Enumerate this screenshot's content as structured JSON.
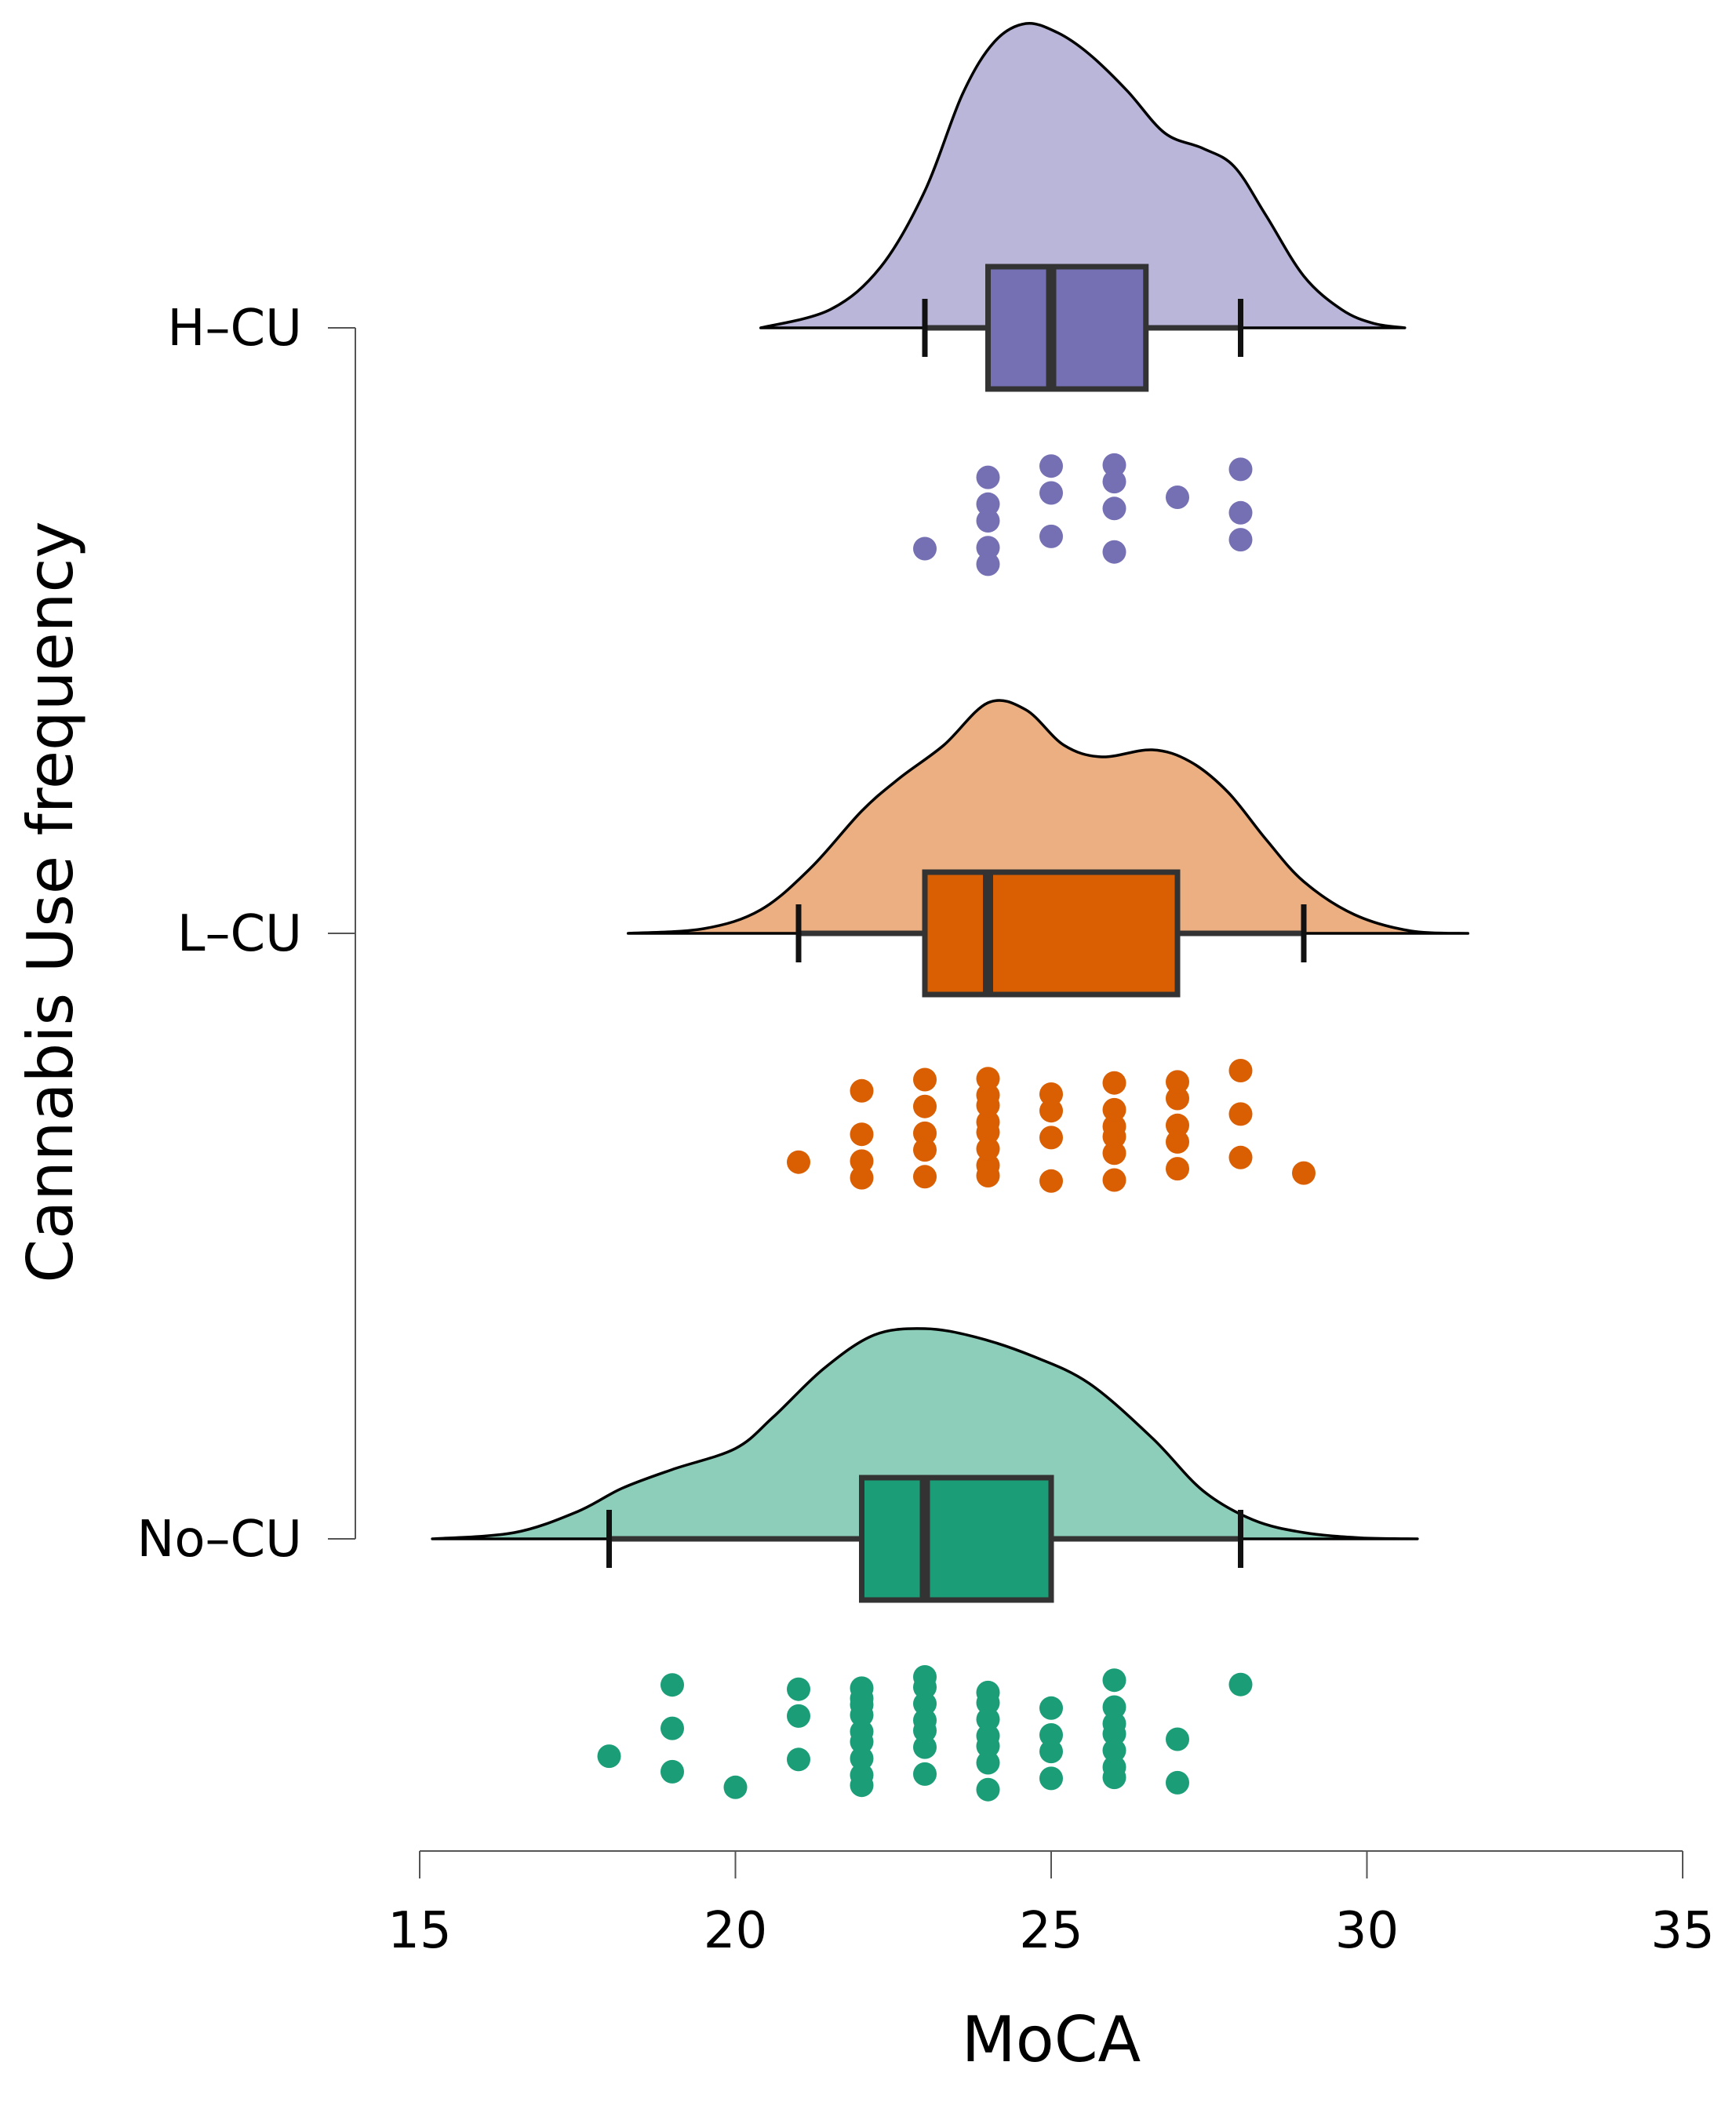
{
  "chart_data": {
    "type": "raincloud",
    "title": "",
    "xlabel": "MoCA",
    "ylabel": "Cannabis Use frequency",
    "xlim": [
      15,
      35
    ],
    "x_ticks": [
      "15",
      "20",
      "25",
      "30",
      "35"
    ],
    "x_tick_values": [
      15,
      20,
      25,
      30,
      35
    ],
    "categories": [
      "H–CU",
      "L–CU",
      "No–CU"
    ],
    "groups": [
      {
        "name": "H–CU",
        "fill": "#7570b3",
        "cloud_fill": "#bab6d9",
        "box": {
          "whisker_low": 23,
          "q1": 24,
          "median": 25,
          "q3": 26.5,
          "whisker_high": 28
        },
        "density": {
          "x": [
            20.4,
            21.5,
            22.3,
            23.0,
            23.6,
            24.1,
            24.6,
            25.1,
            25.6,
            26.2,
            26.8,
            27.4,
            27.9,
            28.4,
            29.0,
            29.6,
            30.1,
            30.6
          ],
          "y": [
            0.0,
            0.06,
            0.2,
            0.45,
            0.77,
            0.94,
            1.0,
            0.97,
            0.9,
            0.78,
            0.64,
            0.59,
            0.53,
            0.37,
            0.17,
            0.06,
            0.015,
            0.0
          ]
        },
        "points": [
          23,
          24,
          24,
          24,
          24,
          24,
          25,
          25,
          25,
          26,
          26,
          26,
          26,
          27,
          28,
          28,
          28
        ]
      },
      {
        "name": "L–CU",
        "fill": "#d95f02",
        "cloud_fill": "#ebaf81",
        "box": {
          "whisker_low": 21,
          "q1": 23,
          "median": 24,
          "q3": 27,
          "whisker_high": 29
        },
        "density": {
          "x": [
            18.3,
            19.5,
            20.4,
            21.2,
            22.0,
            22.6,
            23.3,
            24.0,
            24.6,
            25.2,
            25.8,
            26.6,
            27.2,
            27.8,
            28.4,
            29.0,
            29.8,
            30.7,
            31.6
          ],
          "y": [
            0.0,
            0.02,
            0.1,
            0.28,
            0.52,
            0.66,
            0.8,
            0.98,
            0.95,
            0.8,
            0.75,
            0.78,
            0.73,
            0.6,
            0.4,
            0.22,
            0.08,
            0.01,
            0.0
          ]
        },
        "points": [
          21,
          22,
          22,
          22,
          22,
          23,
          23,
          23,
          23,
          23,
          24,
          24,
          24,
          24,
          24,
          24,
          24,
          24,
          25,
          25,
          25,
          25,
          26,
          26,
          26,
          26,
          26,
          26,
          27,
          27,
          27,
          27,
          27,
          28,
          28,
          28,
          29
        ]
      },
      {
        "name": "No–CU",
        "fill": "#1b9e77",
        "cloud_fill": "#8dceba",
        "box": {
          "whisker_low": 18,
          "q1": 22,
          "median": 23,
          "q3": 25,
          "whisker_high": 28
        },
        "density": {
          "x": [
            15.2,
            16.5,
            17.5,
            18.2,
            19.0,
            20.0,
            20.6,
            21.4,
            22.2,
            23.0,
            23.8,
            24.7,
            25.6,
            26.6,
            27.4,
            28.2,
            29.0,
            29.9,
            30.8
          ],
          "y": [
            0.0,
            0.03,
            0.13,
            0.24,
            0.33,
            0.43,
            0.58,
            0.81,
            0.97,
            1.0,
            0.96,
            0.87,
            0.74,
            0.48,
            0.23,
            0.09,
            0.03,
            0.005,
            0.0
          ]
        },
        "points": [
          18,
          19,
          19,
          19,
          20,
          21,
          21,
          21,
          22,
          22,
          22,
          22,
          22,
          22,
          22,
          22,
          22,
          23,
          23,
          23,
          23,
          23,
          23,
          23,
          24,
          24,
          24,
          24,
          24,
          24,
          24,
          25,
          25,
          25,
          25,
          26,
          26,
          26,
          26,
          26,
          26,
          26,
          27,
          27,
          28
        ]
      }
    ]
  }
}
